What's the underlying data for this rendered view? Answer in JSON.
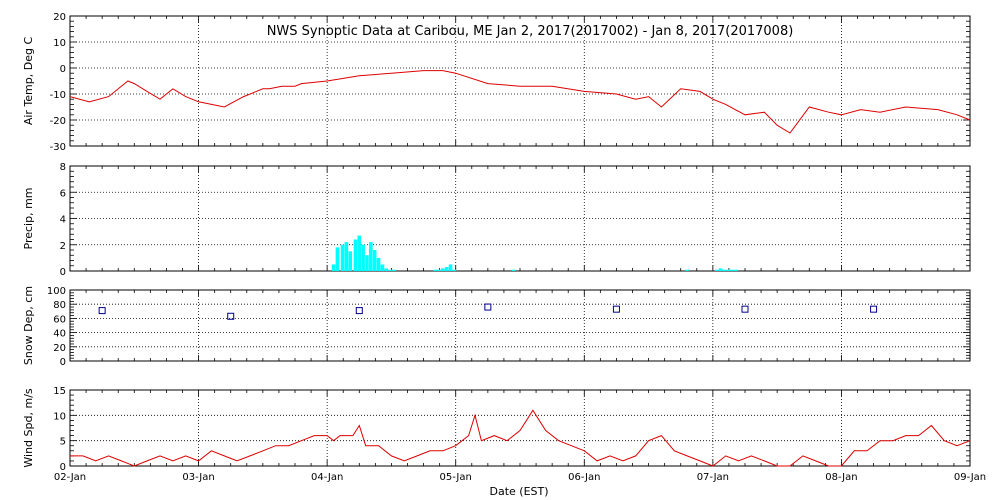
{
  "title": "NWS Synoptic Data at Caribou, ME   Jan  2, 2017(2017002) - Jan  8, 2017(2017008)",
  "xlabel": "Date (EST)",
  "x_ticks": [
    "02-Jan",
    "03-Jan",
    "04-Jan",
    "05-Jan",
    "06-Jan",
    "07-Jan",
    "08-Jan",
    "09-Jan"
  ],
  "colors": {
    "air_temp": "#dd0000",
    "precip": "#00ffff",
    "snow": "#00008b",
    "wind": "#dd0000",
    "grid": "#000000"
  },
  "chart_data": [
    {
      "type": "line",
      "name": "air-temp",
      "ylabel": "Air Temp, Deg C",
      "ylim": [
        -30,
        20
      ],
      "yticks": [
        20,
        10,
        0,
        -10,
        -20,
        -30
      ],
      "x_unit": "day",
      "x": [
        0,
        0.15,
        0.3,
        0.45,
        0.5,
        0.6,
        0.7,
        0.8,
        0.9,
        1.0,
        1.2,
        1.35,
        1.5,
        1.55,
        1.65,
        1.75,
        1.8,
        2.0,
        2.25,
        2.5,
        2.75,
        2.9,
        3.0,
        3.25,
        3.5,
        3.75,
        4.0,
        4.25,
        4.4,
        4.5,
        4.6,
        4.75,
        4.9,
        5.0,
        5.1,
        5.25,
        5.4,
        5.5,
        5.6,
        5.75,
        5.9,
        6.0,
        6.15,
        6.3,
        6.5,
        6.75,
        6.9,
        7.0
      ],
      "y": [
        -11,
        -13,
        -11,
        -5,
        -6,
        -9,
        -12,
        -8,
        -11,
        -13,
        -15,
        -11,
        -8,
        -8,
        -7,
        -7,
        -6,
        -5,
        -3,
        -2,
        -1,
        -1,
        -2,
        -6,
        -7,
        -7,
        -9,
        -10,
        -12,
        -11,
        -15,
        -8,
        -9,
        -12,
        -14,
        -18,
        -17,
        -22,
        -25,
        -15,
        -17,
        -18,
        -16,
        -17,
        -15,
        -16,
        -18,
        -20
      ]
    },
    {
      "type": "bar",
      "name": "precip",
      "ylabel": "Precip, mm",
      "ylim": [
        0,
        8
      ],
      "yticks": [
        8,
        6,
        4,
        2,
        0
      ],
      "x_unit": "day",
      "x": [
        2.05,
        2.08,
        2.12,
        2.15,
        2.18,
        2.22,
        2.25,
        2.28,
        2.31,
        2.34,
        2.37,
        2.4,
        2.43,
        2.46,
        2.49,
        2.52,
        2.84,
        2.87,
        2.9,
        2.93,
        2.96,
        2.99,
        3.45,
        4.8,
        5.03,
        5.06,
        5.09,
        5.12,
        5.15,
        5.18
      ],
      "values": [
        0.5,
        1.8,
        2.0,
        2.2,
        1.5,
        2.4,
        2.7,
        2.0,
        1.2,
        2.2,
        1.6,
        1.0,
        0.5,
        0.2,
        0.1,
        0.1,
        0.1,
        0.1,
        0.2,
        0.3,
        0.5,
        0.1,
        0.1,
        0.1,
        0.1,
        0.2,
        0.1,
        0.1,
        0.1,
        0.1
      ]
    },
    {
      "type": "scatter",
      "name": "snow-depth",
      "ylabel": "Snow Dep, cm",
      "ylim": [
        0,
        100
      ],
      "yticks": [
        100,
        80,
        60,
        40,
        20,
        0
      ],
      "x_unit": "day",
      "x": [
        0.25,
        1.25,
        2.25,
        3.25,
        4.25,
        5.25,
        6.25
      ],
      "y": [
        71,
        63,
        71,
        76,
        73,
        73,
        73
      ]
    },
    {
      "type": "line",
      "name": "wind-speed",
      "ylabel": "Wind Spd, m/s",
      "ylim": [
        0,
        15
      ],
      "yticks": [
        15,
        10,
        5,
        0
      ],
      "x_unit": "day",
      "x": [
        0,
        0.1,
        0.2,
        0.3,
        0.4,
        0.5,
        0.6,
        0.7,
        0.8,
        0.9,
        1.0,
        1.1,
        1.2,
        1.3,
        1.4,
        1.5,
        1.6,
        1.7,
        1.8,
        1.9,
        2.0,
        2.05,
        2.1,
        2.2,
        2.25,
        2.3,
        2.4,
        2.5,
        2.6,
        2.7,
        2.8,
        2.9,
        3.0,
        3.1,
        3.15,
        3.2,
        3.3,
        3.4,
        3.5,
        3.6,
        3.7,
        3.8,
        3.9,
        4.0,
        4.1,
        4.2,
        4.3,
        4.4,
        4.5,
        4.6,
        4.7,
        4.8,
        4.9,
        5.0,
        5.1,
        5.2,
        5.3,
        5.4,
        5.5,
        5.6,
        5.7,
        5.8,
        5.9,
        6.0,
        6.1,
        6.2,
        6.3,
        6.4,
        6.5,
        6.6,
        6.7,
        6.8,
        6.9,
        7.0
      ],
      "y": [
        2,
        2,
        1,
        2,
        1,
        0,
        1,
        2,
        1,
        2,
        1,
        3,
        2,
        1,
        2,
        3,
        4,
        4,
        5,
        6,
        6,
        5,
        6,
        6,
        8,
        4,
        4,
        2,
        1,
        2,
        3,
        3,
        4,
        6,
        10,
        5,
        6,
        5,
        7,
        11,
        7,
        5,
        4,
        3,
        1,
        2,
        1,
        2,
        5,
        6,
        3,
        2,
        1,
        0,
        2,
        1,
        2,
        1,
        0,
        0,
        2,
        1,
        0,
        0,
        3,
        3,
        5,
        5,
        6,
        6,
        8,
        5,
        4,
        5
      ]
    }
  ]
}
